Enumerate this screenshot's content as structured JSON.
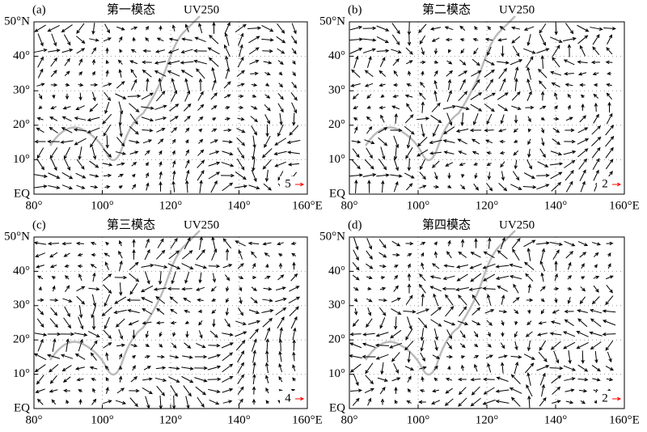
{
  "chart_data": [
    {
      "type": "quiver",
      "panel": "(a)",
      "title": "第一模态",
      "subtitle": "UV250",
      "reference_vector": 5,
      "reference_color": "#ff0000",
      "xlim": [
        80,
        160
      ],
      "xticks": [
        {
          "value": 80,
          "label": "80°"
        },
        {
          "value": 100,
          "label": "100°"
        },
        {
          "value": 120,
          "label": "120°"
        },
        {
          "value": 140,
          "label": "140°"
        },
        {
          "value": 160,
          "label": "160°E"
        }
      ],
      "ylim": [
        0,
        50
      ],
      "yticks": [
        {
          "value": 0,
          "label": "EQ"
        },
        {
          "value": 10,
          "label": "10°"
        },
        {
          "value": 20,
          "label": "20°"
        },
        {
          "value": 30,
          "label": "30°"
        },
        {
          "value": 40,
          "label": "40°"
        },
        {
          "value": 50,
          "label": "50°N"
        }
      ]
    },
    {
      "type": "quiver",
      "panel": "(b)",
      "title": "第二模态",
      "subtitle": "UV250",
      "reference_vector": 2,
      "reference_color": "#ff0000",
      "xlim": [
        80,
        160
      ],
      "xticks": [
        {
          "value": 80,
          "label": "80°"
        },
        {
          "value": 100,
          "label": "100°"
        },
        {
          "value": 120,
          "label": "120°"
        },
        {
          "value": 140,
          "label": "140°"
        },
        {
          "value": 160,
          "label": "160°E"
        }
      ],
      "ylim": [
        0,
        50
      ],
      "yticks": [
        {
          "value": 0,
          "label": "EQ"
        },
        {
          "value": 10,
          "label": "10°"
        },
        {
          "value": 20,
          "label": "20°"
        },
        {
          "value": 30,
          "label": "30°"
        },
        {
          "value": 40,
          "label": "40°"
        },
        {
          "value": 50,
          "label": "50°N"
        }
      ]
    },
    {
      "type": "quiver",
      "panel": "(c)",
      "title": "第三模态",
      "subtitle": "UV250",
      "reference_vector": 4,
      "reference_color": "#ff0000",
      "xlim": [
        80,
        160
      ],
      "xticks": [
        {
          "value": 80,
          "label": "80°"
        },
        {
          "value": 100,
          "label": "100°"
        },
        {
          "value": 120,
          "label": "120°"
        },
        {
          "value": 140,
          "label": "140°"
        },
        {
          "value": 160,
          "label": "160°E"
        }
      ],
      "ylim": [
        0,
        50
      ],
      "yticks": [
        {
          "value": 0,
          "label": "EQ"
        },
        {
          "value": 10,
          "label": "10°"
        },
        {
          "value": 20,
          "label": "20°"
        },
        {
          "value": 30,
          "label": "30°"
        },
        {
          "value": 40,
          "label": "40°"
        },
        {
          "value": 50,
          "label": "50°N"
        }
      ]
    },
    {
      "type": "quiver",
      "panel": "(d)",
      "title": "第四模态",
      "subtitle": "UV250",
      "reference_vector": 2,
      "reference_color": "#ff0000",
      "xlim": [
        80,
        160
      ],
      "xticks": [
        {
          "value": 80,
          "label": "80°"
        },
        {
          "value": 100,
          "label": "100°"
        },
        {
          "value": 120,
          "label": "120°"
        },
        {
          "value": 140,
          "label": "140°"
        },
        {
          "value": 160,
          "label": "160°E"
        }
      ],
      "ylim": [
        0,
        50
      ],
      "yticks": [
        {
          "value": 0,
          "label": "EQ"
        },
        {
          "value": 10,
          "label": "10°"
        },
        {
          "value": 20,
          "label": "20°"
        },
        {
          "value": 30,
          "label": "30°"
        },
        {
          "value": 40,
          "label": "40°"
        },
        {
          "value": 50,
          "label": "50°N"
        }
      ]
    }
  ]
}
